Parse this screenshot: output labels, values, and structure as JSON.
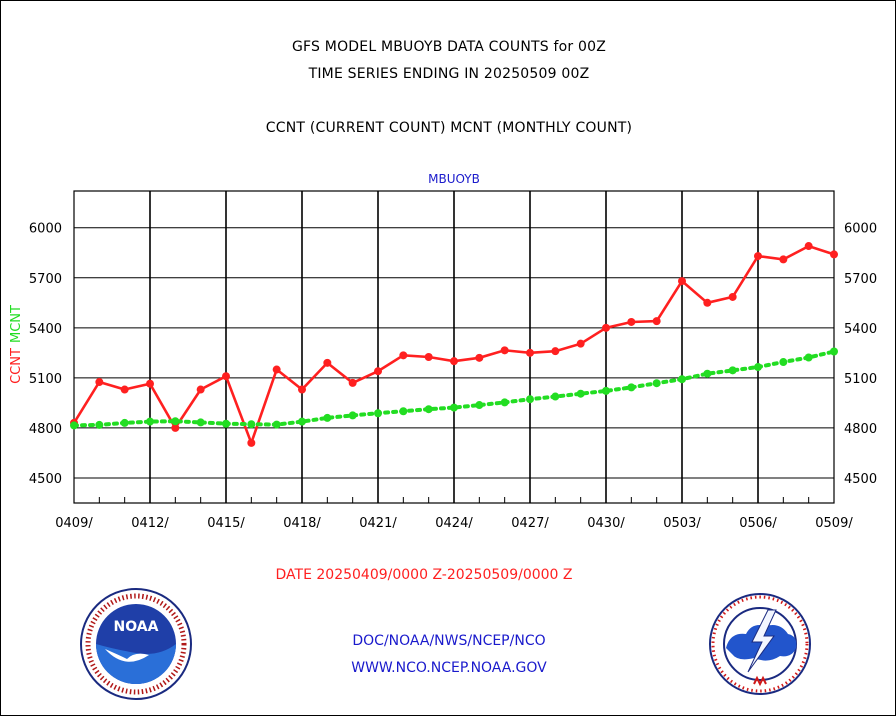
{
  "header": {
    "title_line1": "GFS MODEL MBUOYB DATA COUNTS for 00Z",
    "title_line2": "TIME SERIES ENDING IN 20250509 00Z",
    "subtitle": "CCNT (CURRENT COUNT) MCNT (MONTHLY COUNT)"
  },
  "footer": {
    "line1": "DOC/NOAA/NWS/NCEP/NCO",
    "line2": "WWW.NCO.NCEP.NOAA.GOV"
  },
  "colors": {
    "ccnt": "#ff2020",
    "mcnt": "#22dd22",
    "panel_title": "#1a1acc",
    "footer": "#1a1acc",
    "grid": "#000000"
  },
  "chart_data": {
    "type": "line",
    "title": "MBUOYB",
    "xlabel": "DATE 20250409/0000 Z-20250509/0000 Z",
    "ylabel_left": [
      "CCNT",
      "MCNT"
    ],
    "ylim": [
      4350,
      6220
    ],
    "yticks": [
      4500,
      4800,
      5100,
      5400,
      5700,
      6000
    ],
    "x_tick_labels": [
      "0409/",
      "0412/",
      "0415/",
      "0418/",
      "0421/",
      "0424/",
      "0427/",
      "0430/",
      "0503/",
      "0506/",
      "0509/"
    ],
    "x_start_label": "0409/",
    "x_end_label": "0509/",
    "grid": true,
    "series": [
      {
        "name": "CCNT",
        "color": "#ff2020",
        "style": "solid",
        "values": [
          4830,
          5075,
          5030,
          5065,
          4800,
          5030,
          5110,
          4710,
          5150,
          5030,
          5190,
          5070,
          5140,
          5235,
          5225,
          5200,
          5220,
          5265,
          5250,
          5260,
          5305,
          5400,
          5435,
          5440,
          5680,
          5550,
          5585,
          5830,
          5810,
          5890,
          5840
        ]
      },
      {
        "name": "MCNT",
        "color": "#22dd22",
        "style": "dotted",
        "values": [
          4815,
          4818,
          4830,
          4838,
          4840,
          4833,
          4825,
          4822,
          4820,
          4838,
          4860,
          4875,
          4888,
          4900,
          4912,
          4922,
          4937,
          4953,
          4972,
          4988,
          5005,
          5022,
          5043,
          5068,
          5092,
          5125,
          5145,
          5165,
          5195,
          5222,
          5258
        ]
      }
    ]
  }
}
